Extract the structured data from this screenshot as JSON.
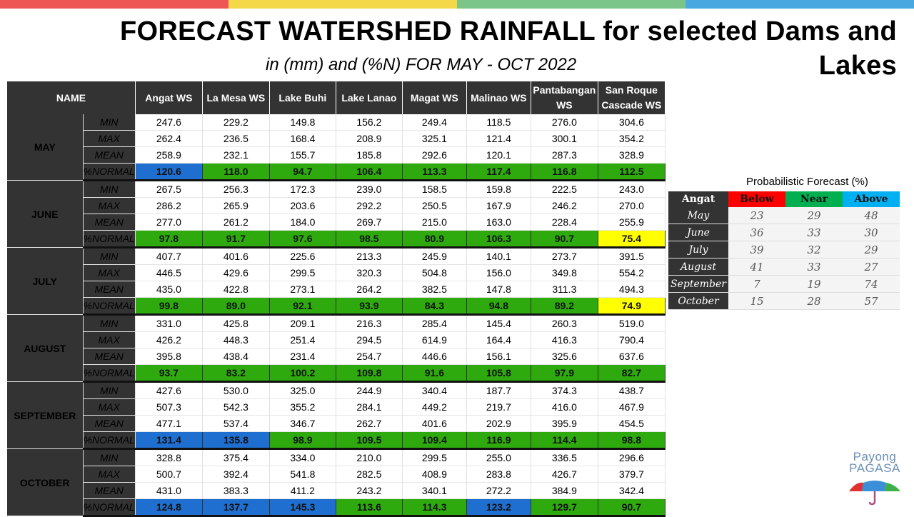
{
  "title": "FORECAST WATERSHED RAINFALL  for selected Dams and Lakes",
  "subtitle": "in (mm) and (%N) FOR MAY - OCT 2022",
  "table": {
    "name_header": "NAME",
    "columns": [
      "Angat WS",
      "La Mesa WS",
      "Lake Buhi",
      "Lake Lanao",
      "Magat WS",
      "Malinao WS",
      "Pantabangan WS",
      "San Roque Cascade WS"
    ],
    "stat_labels": [
      "MIN",
      "MAX",
      "MEAN",
      "%NORMAL"
    ],
    "months": [
      {
        "name": "MAY",
        "min": [
          "247.6",
          "229.2",
          "149.8",
          "156.2",
          "249.4",
          "118.5",
          "276.0",
          "304.6"
        ],
        "max": [
          "262.4",
          "236.5",
          "168.4",
          "208.9",
          "325.1",
          "121.4",
          "300.1",
          "354.2"
        ],
        "mean": [
          "258.9",
          "232.1",
          "155.7",
          "185.8",
          "292.6",
          "120.1",
          "287.3",
          "328.9"
        ],
        "normal": [
          "120.6",
          "118.0",
          "94.7",
          "106.4",
          "113.3",
          "117.4",
          "116.8",
          "112.5"
        ],
        "normal_colors": [
          "#1f6fd0",
          "#2eaa0f",
          "#2eaa0f",
          "#2eaa0f",
          "#2eaa0f",
          "#2eaa0f",
          "#2eaa0f",
          "#2eaa0f"
        ]
      },
      {
        "name": "JUNE",
        "min": [
          "267.5",
          "256.3",
          "172.3",
          "239.0",
          "158.5",
          "159.8",
          "222.5",
          "243.0"
        ],
        "max": [
          "286.2",
          "265.9",
          "203.6",
          "292.2",
          "250.5",
          "167.9",
          "246.2",
          "270.0"
        ],
        "mean": [
          "277.0",
          "261.2",
          "184.0",
          "269.7",
          "215.0",
          "163.0",
          "228.4",
          "255.9"
        ],
        "normal": [
          "97.8",
          "91.7",
          "97.6",
          "98.5",
          "80.9",
          "106.3",
          "90.7",
          "75.4"
        ],
        "normal_colors": [
          "#2eaa0f",
          "#2eaa0f",
          "#2eaa0f",
          "#2eaa0f",
          "#2eaa0f",
          "#2eaa0f",
          "#2eaa0f",
          "#ffff00"
        ]
      },
      {
        "name": "JULY",
        "min": [
          "407.7",
          "401.6",
          "225.6",
          "213.3",
          "245.9",
          "140.1",
          "273.7",
          "391.5"
        ],
        "max": [
          "446.5",
          "429.6",
          "299.5",
          "320.3",
          "504.8",
          "156.0",
          "349.8",
          "554.2"
        ],
        "mean": [
          "435.0",
          "422.8",
          "273.1",
          "264.2",
          "382.5",
          "147.8",
          "311.3",
          "494.3"
        ],
        "normal": [
          "99.8",
          "89.0",
          "92.1",
          "93.9",
          "84.3",
          "94.8",
          "89.2",
          "74.9"
        ],
        "normal_colors": [
          "#2eaa0f",
          "#2eaa0f",
          "#2eaa0f",
          "#2eaa0f",
          "#2eaa0f",
          "#2eaa0f",
          "#2eaa0f",
          "#ffff00"
        ]
      },
      {
        "name": "AUGUST",
        "min": [
          "331.0",
          "425.8",
          "209.1",
          "216.3",
          "285.4",
          "145.4",
          "260.3",
          "519.0"
        ],
        "max": [
          "426.2",
          "448.3",
          "251.4",
          "294.5",
          "614.9",
          "164.4",
          "416.3",
          "790.4"
        ],
        "mean": [
          "395.8",
          "438.4",
          "231.4",
          "254.7",
          "446.6",
          "156.1",
          "325.6",
          "637.6"
        ],
        "normal": [
          "93.7",
          "83.2",
          "100.2",
          "109.8",
          "91.6",
          "105.8",
          "97.9",
          "82.7"
        ],
        "normal_colors": [
          "#2eaa0f",
          "#2eaa0f",
          "#2eaa0f",
          "#2eaa0f",
          "#2eaa0f",
          "#2eaa0f",
          "#2eaa0f",
          "#2eaa0f"
        ]
      },
      {
        "name": "SEPTEMBER",
        "min": [
          "427.6",
          "530.0",
          "325.0",
          "244.9",
          "340.4",
          "187.7",
          "374.3",
          "438.7"
        ],
        "max": [
          "507.3",
          "542.3",
          "355.2",
          "284.1",
          "449.2",
          "219.7",
          "416.0",
          "467.9"
        ],
        "mean": [
          "477.1",
          "537.4",
          "346.7",
          "262.7",
          "401.6",
          "202.9",
          "395.9",
          "454.5"
        ],
        "normal": [
          "131.4",
          "135.8",
          "98.9",
          "109.5",
          "109.4",
          "116.9",
          "114.4",
          "98.8"
        ],
        "normal_colors": [
          "#1f6fd0",
          "#1f6fd0",
          "#2eaa0f",
          "#2eaa0f",
          "#2eaa0f",
          "#2eaa0f",
          "#2eaa0f",
          "#2eaa0f"
        ]
      },
      {
        "name": "OCTOBER",
        "min": [
          "328.8",
          "375.4",
          "334.0",
          "210.0",
          "299.5",
          "255.0",
          "336.5",
          "296.6"
        ],
        "max": [
          "500.7",
          "392.4",
          "541.8",
          "282.5",
          "408.9",
          "283.8",
          "426.7",
          "379.7"
        ],
        "mean": [
          "431.0",
          "383.3",
          "411.2",
          "243.2",
          "340.1",
          "272.2",
          "384.9",
          "342.4"
        ],
        "normal": [
          "124.8",
          "137.7",
          "145.3",
          "113.6",
          "114.3",
          "123.2",
          "129.7",
          "90.7"
        ],
        "normal_colors": [
          "#1f6fd0",
          "#1f6fd0",
          "#1f6fd0",
          "#2eaa0f",
          "#2eaa0f",
          "#1f6fd0",
          "#2eaa0f",
          "#2eaa0f"
        ]
      }
    ]
  },
  "probabilistic": {
    "title": "Probabilistic Forecast (%)",
    "headers": [
      "Angat",
      "Below",
      "Near",
      "Above"
    ],
    "header_colors": [
      "#333333",
      "#ff0000",
      "#00b050",
      "#00b0f0"
    ],
    "rows": [
      {
        "month": "May",
        "below": "23",
        "near": "29",
        "above": "48"
      },
      {
        "month": "June",
        "below": "36",
        "near": "33",
        "above": "30"
      },
      {
        "month": "July",
        "below": "39",
        "near": "32",
        "above": "29"
      },
      {
        "month": "August",
        "below": "41",
        "near": "33",
        "above": "27"
      },
      {
        "month": "September",
        "below": "7",
        "near": "19",
        "above": "74"
      },
      {
        "month": "October",
        "below": "15",
        "near": "28",
        "above": "57"
      }
    ]
  },
  "logo": {
    "line1": "Payong",
    "line2": "PAGASA"
  },
  "colors": {
    "topbar": [
      "#ee5555",
      "#f4d84a",
      "#7cc58a",
      "#4aa8e0"
    ],
    "green": "#2eaa0f",
    "blue": "#1f6fd0",
    "yellow": "#ffff00",
    "dark": "#333333"
  }
}
